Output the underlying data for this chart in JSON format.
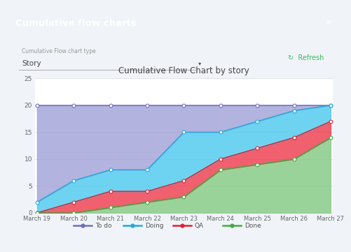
{
  "title": "Cumulative Flow Chart by story",
  "x_labels": [
    "March 19",
    "March 20",
    "March 21",
    "March 22",
    "March 23",
    "March 24",
    "March 25",
    "March 26",
    "March 27"
  ],
  "todo": [
    20,
    20,
    20,
    20,
    20,
    20,
    20,
    20,
    20
  ],
  "doing": [
    2,
    6,
    8,
    8,
    15,
    15,
    17,
    19,
    20
  ],
  "qa": [
    0,
    2,
    4,
    4,
    6,
    10,
    12,
    14,
    17
  ],
  "done": [
    0,
    0,
    1,
    2,
    3,
    8,
    9,
    10,
    14
  ],
  "ylim": [
    0,
    25
  ],
  "yticks": [
    0,
    5,
    10,
    15,
    20,
    25
  ],
  "todo_color": "#a0a0d8",
  "doing_color": "#55ccee",
  "qa_color": "#ee4455",
  "done_color": "#88cc88",
  "todo_line": "#7070bb",
  "doing_line": "#22aadd",
  "qa_line": "#dd2233",
  "done_line": "#44aa44",
  "bg_color": "#ffffff",
  "grid_color": "#dddddd",
  "title_color": "#444444",
  "legend_labels": [
    "To do",
    "Doing",
    "QA",
    "Done"
  ],
  "marker": "o",
  "marker_size": 3.5,
  "header_bg": "#42bef5",
  "header_text": "Cumulative flow charts",
  "subtitle_label": "Cumulative Flow chart type",
  "dropdown_text": "Story",
  "refresh_text": "Refresh",
  "outer_bg": "#f0f4f8"
}
